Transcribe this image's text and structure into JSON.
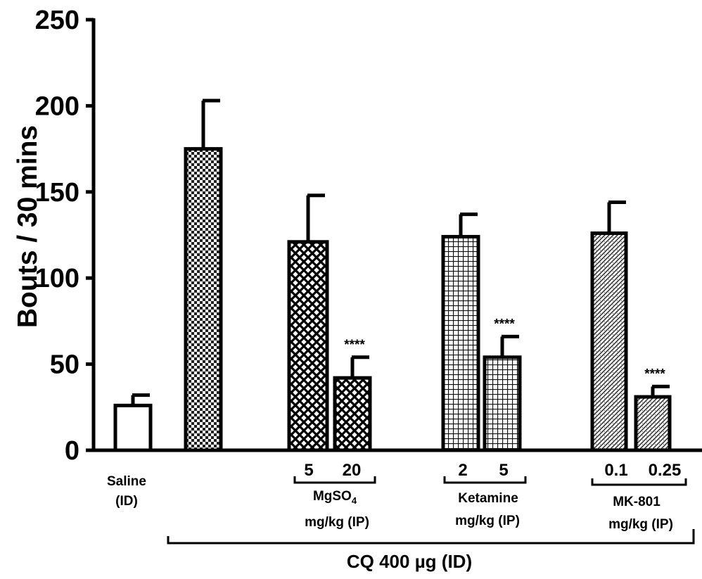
{
  "chart_data": {
    "type": "bar",
    "ylabel": "Bouts / 30 mins",
    "ylim": [
      0,
      250
    ],
    "yticks": [
      0,
      50,
      100,
      150,
      200,
      250
    ],
    "bars": [
      {
        "group": "Saline (ID)",
        "value": 26,
        "error": 6,
        "pattern": "open"
      },
      {
        "group": "CQ 400 µg (ID)",
        "value": 175,
        "error": 28,
        "pattern": "checker"
      },
      {
        "group": "MgSO4",
        "dose": "5",
        "value": 121,
        "error": 27,
        "pattern": "crosshatch"
      },
      {
        "group": "MgSO4",
        "dose": "20",
        "value": 42,
        "error": 12,
        "pattern": "crosshatch",
        "significance": "****"
      },
      {
        "group": "Ketamine",
        "dose": "2",
        "value": 124,
        "error": 13,
        "pattern": "grid"
      },
      {
        "group": "Ketamine",
        "dose": "5",
        "value": 54,
        "error": 12,
        "pattern": "grid",
        "significance": "****"
      },
      {
        "group": "MK-801",
        "dose": "0.1",
        "value": 126,
        "error": 18,
        "pattern": "diagonal"
      },
      {
        "group": "MK-801",
        "dose": "0.25",
        "value": 31,
        "error": 6,
        "pattern": "diagonal",
        "significance": "****"
      }
    ],
    "significance_label": "****"
  },
  "labels": {
    "saline_line1": "Saline",
    "saline_line2": "(ID)",
    "mgso4_doses": [
      "5",
      "20"
    ],
    "mgso4_name_main": "MgSO",
    "mgso4_name_sub": "4",
    "mgso4_units": "mg/kg (IP)",
    "ketamine_doses": [
      "2",
      "5"
    ],
    "ketamine_name": "Ketamine",
    "ketamine_units": "mg/kg (IP)",
    "mk801_doses": [
      "0.1",
      "0.25"
    ],
    "mk801_name": "MK-801",
    "mk801_units": "mg/kg (IP)",
    "cq_label": "CQ 400 µg (ID)"
  }
}
